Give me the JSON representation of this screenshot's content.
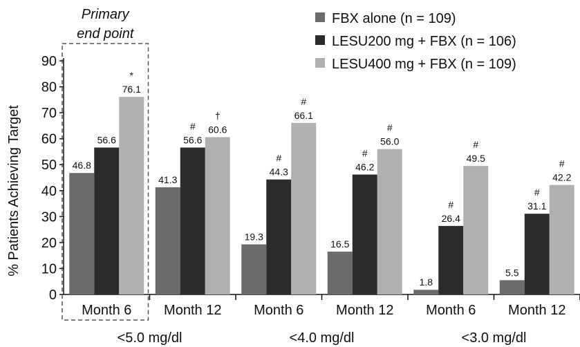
{
  "chart_data": {
    "type": "bar",
    "ylabel": "% Patients Achieving Target",
    "ylim": [
      0,
      90
    ],
    "yticks": [
      0,
      10,
      20,
      30,
      40,
      50,
      60,
      70,
      80,
      90
    ],
    "legend_position": "top-right",
    "annotation": [
      "Primary",
      "end point"
    ],
    "groups": [
      "<5.0 mg/dl",
      "<4.0 mg/dl",
      "<3.0 mg/dl"
    ],
    "categories": [
      "Month 6",
      "Month 12",
      "Month 6",
      "Month 12",
      "Month 6",
      "Month 12"
    ],
    "series": [
      {
        "name": "FBX alone (n = 109)",
        "color": "#6b6b6b",
        "values": [
          46.8,
          41.3,
          19.3,
          16.5,
          1.8,
          5.5
        ],
        "labels": [
          "46.8",
          "41.3",
          "19.3",
          "16.5",
          "1.8",
          "5.5"
        ],
        "markers": [
          "",
          "",
          "",
          "",
          "",
          ""
        ]
      },
      {
        "name": "LESU200 mg + FBX (n = 106)",
        "color": "#2b2b2b",
        "values": [
          56.6,
          56.6,
          44.3,
          46.2,
          26.4,
          31.1
        ],
        "labels": [
          "56.6",
          "56.6",
          "44.3",
          "46.2",
          "26.4",
          "31.1"
        ],
        "markers": [
          "",
          "#",
          "#",
          "#",
          "#",
          "#"
        ]
      },
      {
        "name": "LESU400 mg + FBX (n = 109)",
        "color": "#b0b0b0",
        "values": [
          76.1,
          60.6,
          66.1,
          56.0,
          49.5,
          42.2
        ],
        "labels": [
          "76.1",
          "60.6",
          "66.1",
          "56.0",
          "49.5",
          "42.2"
        ],
        "markers": [
          "*",
          "†",
          "#",
          "#",
          "#",
          "#"
        ]
      }
    ]
  }
}
